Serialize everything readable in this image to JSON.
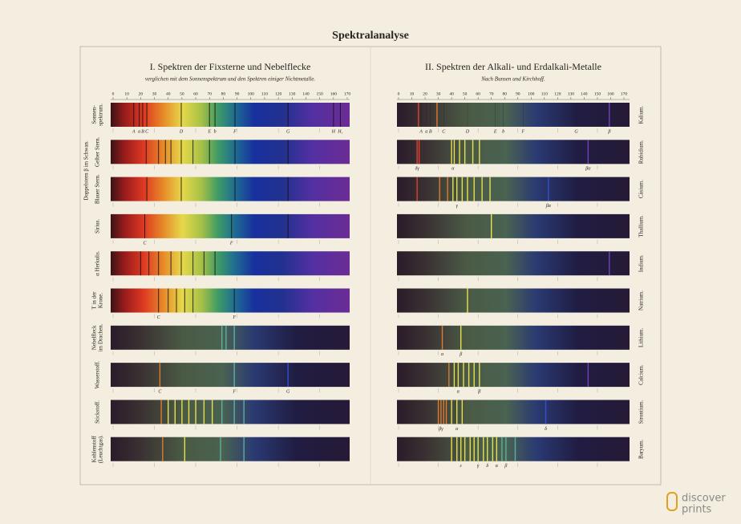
{
  "title": "Spektralanalyse",
  "panels": [
    {
      "title": "I. Spektren der Fixsterne und Nebelflecke",
      "subtitle": "verglichen mit dem Sonnenspektrum und den Spektren einiger Nichtmetalle.",
      "group_label": "Doppelstern β im Schwan.",
      "scale": [
        0,
        10,
        20,
        30,
        40,
        50,
        60,
        70,
        80,
        90,
        100,
        110,
        120,
        130,
        140,
        150,
        160,
        170
      ],
      "rows": [
        {
          "label": [
            "Sonnen-",
            "spektrum."
          ],
          "continuous": true,
          "lines": [
            {
              "pos": 15,
              "label": "A"
            },
            {
              "pos": 19,
              "label": "a"
            },
            {
              "pos": 21.5,
              "label": "B"
            },
            {
              "pos": 24.5,
              "label": "C"
            },
            {
              "pos": 49.5,
              "label": "D"
            },
            {
              "pos": 70,
              "label": "E"
            },
            {
              "pos": 74,
              "label": "b"
            },
            {
              "pos": 88.5,
              "label": "F"
            },
            {
              "pos": 127,
              "label": "G"
            },
            {
              "pos": 160,
              "label": "H"
            },
            {
              "pos": 165,
              "label": "H₁"
            }
          ]
        },
        {
          "label": [
            "Gelber Stern."
          ],
          "continuous": true,
          "lines": [
            {
              "pos": 24
            },
            {
              "pos": 33
            },
            {
              "pos": 38
            },
            {
              "pos": 42
            },
            {
              "pos": 49.5
            },
            {
              "pos": 58
            },
            {
              "pos": 70
            },
            {
              "pos": 88.5
            },
            {
              "pos": 127
            }
          ]
        },
        {
          "label": [
            "Blauer Stern."
          ],
          "continuous": true,
          "lines": [
            {
              "pos": 24.5
            },
            {
              "pos": 49.5
            },
            {
              "pos": 88.5
            },
            {
              "pos": 127
            }
          ]
        },
        {
          "label": [
            "Sirius."
          ],
          "continuous": true,
          "lines": [
            {
              "pos": 23,
              "label": "C"
            },
            {
              "pos": 86,
              "label": "F"
            },
            {
              "pos": 127
            }
          ]
        },
        {
          "label": [
            "α Herkulis."
          ],
          "continuous": true,
          "lines": [
            {
              "pos": 20
            },
            {
              "pos": 26
            },
            {
              "pos": 33
            },
            {
              "pos": 42
            },
            {
              "pos": 49.5
            },
            {
              "pos": 58
            },
            {
              "pos": 66
            },
            {
              "pos": 74
            }
          ]
        },
        {
          "label": [
            "T in der",
            "Krone."
          ],
          "continuous": true,
          "lines": [
            {
              "pos": 33,
              "label": "C"
            },
            {
              "pos": 40
            },
            {
              "pos": 46
            },
            {
              "pos": 52
            },
            {
              "pos": 58
            },
            {
              "pos": 88,
              "label": "F"
            }
          ]
        },
        {
          "label": [
            "Nebelfleck",
            "im Drachen."
          ],
          "continuous": false,
          "emission": [
            {
              "pos": 79
            },
            {
              "pos": 82
            },
            {
              "pos": 88
            }
          ]
        },
        {
          "label": [
            "Wasserstoff."
          ],
          "continuous": false,
          "emission": [
            {
              "pos": 34,
              "label": "C"
            },
            {
              "pos": 88,
              "label": "F"
            },
            {
              "pos": 127,
              "label": "G"
            }
          ]
        },
        {
          "label": [
            "Stickstoff."
          ],
          "continuous": false,
          "emission": [
            {
              "pos": 35
            },
            {
              "pos": 40
            },
            {
              "pos": 45
            },
            {
              "pos": 50
            },
            {
              "pos": 55
            },
            {
              "pos": 60
            },
            {
              "pos": 66
            },
            {
              "pos": 72
            },
            {
              "pos": 79
            },
            {
              "pos": 88
            },
            {
              "pos": 95
            }
          ]
        },
        {
          "label": [
            "Kohlenstoff",
            "(Leuchtgas)."
          ],
          "continuous": false,
          "emission": [
            {
              "pos": 36
            },
            {
              "pos": 52
            },
            {
              "pos": 78
            },
            {
              "pos": 95
            }
          ]
        }
      ]
    },
    {
      "title": "II. Spektren der Alkali- und Erdalkali-Metalle",
      "subtitle": "Nach Bunsen und Kirchhoff.",
      "scale": [
        0,
        10,
        20,
        30,
        40,
        50,
        60,
        70,
        80,
        90,
        100,
        110,
        120,
        130,
        140,
        150,
        160,
        170
      ],
      "rows": [
        {
          "label": [
            "Kalium."
          ],
          "lines": [
            {
              "pos": 17,
              "label": "A"
            },
            {
              "pos": 21,
              "label": "a"
            },
            {
              "pos": 24,
              "label": "B"
            },
            {
              "pos": 34,
              "label": "C"
            },
            {
              "pos": 52,
              "label": "D"
            },
            {
              "pos": 73,
              "label": "E"
            },
            {
              "pos": 79,
              "label": "b"
            },
            {
              "pos": 94,
              "label": "F"
            },
            {
              "pos": 134,
              "label": "G"
            },
            {
              "pos": 159,
              "label": "β"
            }
          ],
          "emission": [
            {
              "pos": 15
            },
            {
              "pos": 29
            },
            {
              "pos": 159
            }
          ]
        },
        {
          "label": [
            "Rubidium."
          ],
          "lines": [
            {
              "pos": 14,
              "label": "δγ"
            },
            {
              "pos": 41,
              "label": "α"
            },
            {
              "pos": 143,
              "label": "βα"
            }
          ],
          "emission": [
            {
              "pos": 14
            },
            {
              "pos": 15.5
            },
            {
              "pos": 40
            },
            {
              "pos": 42
            },
            {
              "pos": 46
            },
            {
              "pos": 50
            },
            {
              "pos": 56
            },
            {
              "pos": 61
            },
            {
              "pos": 143
            }
          ]
        },
        {
          "label": [
            "Cäsium."
          ],
          "lines": [
            {
              "pos": 44,
              "label": "γ"
            },
            {
              "pos": 113,
              "label": "βα"
            }
          ],
          "emission": [
            {
              "pos": 14
            },
            {
              "pos": 31
            },
            {
              "pos": 37
            },
            {
              "pos": 41
            },
            {
              "pos": 44
            },
            {
              "pos": 48
            },
            {
              "pos": 52
            },
            {
              "pos": 57
            },
            {
              "pos": 63
            },
            {
              "pos": 69
            },
            {
              "pos": 113
            }
          ]
        },
        {
          "label": [
            "Thallium."
          ],
          "emission": [
            {
              "pos": 70
            }
          ]
        },
        {
          "label": [
            "Indium."
          ],
          "emission": [
            {
              "pos": 159
            }
          ]
        },
        {
          "label": [
            "Natrium."
          ],
          "emission": [
            {
              "pos": 52
            }
          ]
        },
        {
          "label": [
            "Lithium."
          ],
          "lines": [
            {
              "pos": 33,
              "label": "α"
            },
            {
              "pos": 47,
              "label": "β"
            }
          ],
          "emission": [
            {
              "pos": 33
            },
            {
              "pos": 47
            }
          ]
        },
        {
          "label": [
            "Calcium."
          ],
          "lines": [
            {
              "pos": 45,
              "label": "α"
            },
            {
              "pos": 61,
              "label": "β"
            }
          ],
          "emission": [
            {
              "pos": 38
            },
            {
              "pos": 42
            },
            {
              "pos": 45
            },
            {
              "pos": 49
            },
            {
              "pos": 53
            },
            {
              "pos": 57
            },
            {
              "pos": 61
            },
            {
              "pos": 143
            }
          ]
        },
        {
          "label": [
            "Strontium."
          ],
          "lines": [
            {
              "pos": 32,
              "label": "βγ"
            },
            {
              "pos": 44,
              "label": "α"
            },
            {
              "pos": 111,
              "label": "δ"
            }
          ],
          "emission": [
            {
              "pos": 30
            },
            {
              "pos": 32
            },
            {
              "pos": 34
            },
            {
              "pos": 36
            },
            {
              "pos": 40
            },
            {
              "pos": 44
            },
            {
              "pos": 48
            },
            {
              "pos": 111
            }
          ]
        },
        {
          "label": [
            "Baryum."
          ],
          "lines": [
            {
              "pos": 47,
              "label": "ε"
            },
            {
              "pos": 60,
              "label": "γ"
            },
            {
              "pos": 67,
              "label": "δ"
            },
            {
              "pos": 74,
              "label": "α"
            },
            {
              "pos": 81,
              "label": "β"
            }
          ],
          "emission": [
            {
              "pos": 40
            },
            {
              "pos": 44
            },
            {
              "pos": 47
            },
            {
              "pos": 50
            },
            {
              "pos": 54
            },
            {
              "pos": 57
            },
            {
              "pos": 60
            },
            {
              "pos": 64
            },
            {
              "pos": 67
            },
            {
              "pos": 71
            },
            {
              "pos": 74
            },
            {
              "pos": 78
            },
            {
              "pos": 81
            },
            {
              "pos": 88
            }
          ]
        }
      ]
    }
  ],
  "watermark": [
    "discover",
    "prints"
  ]
}
